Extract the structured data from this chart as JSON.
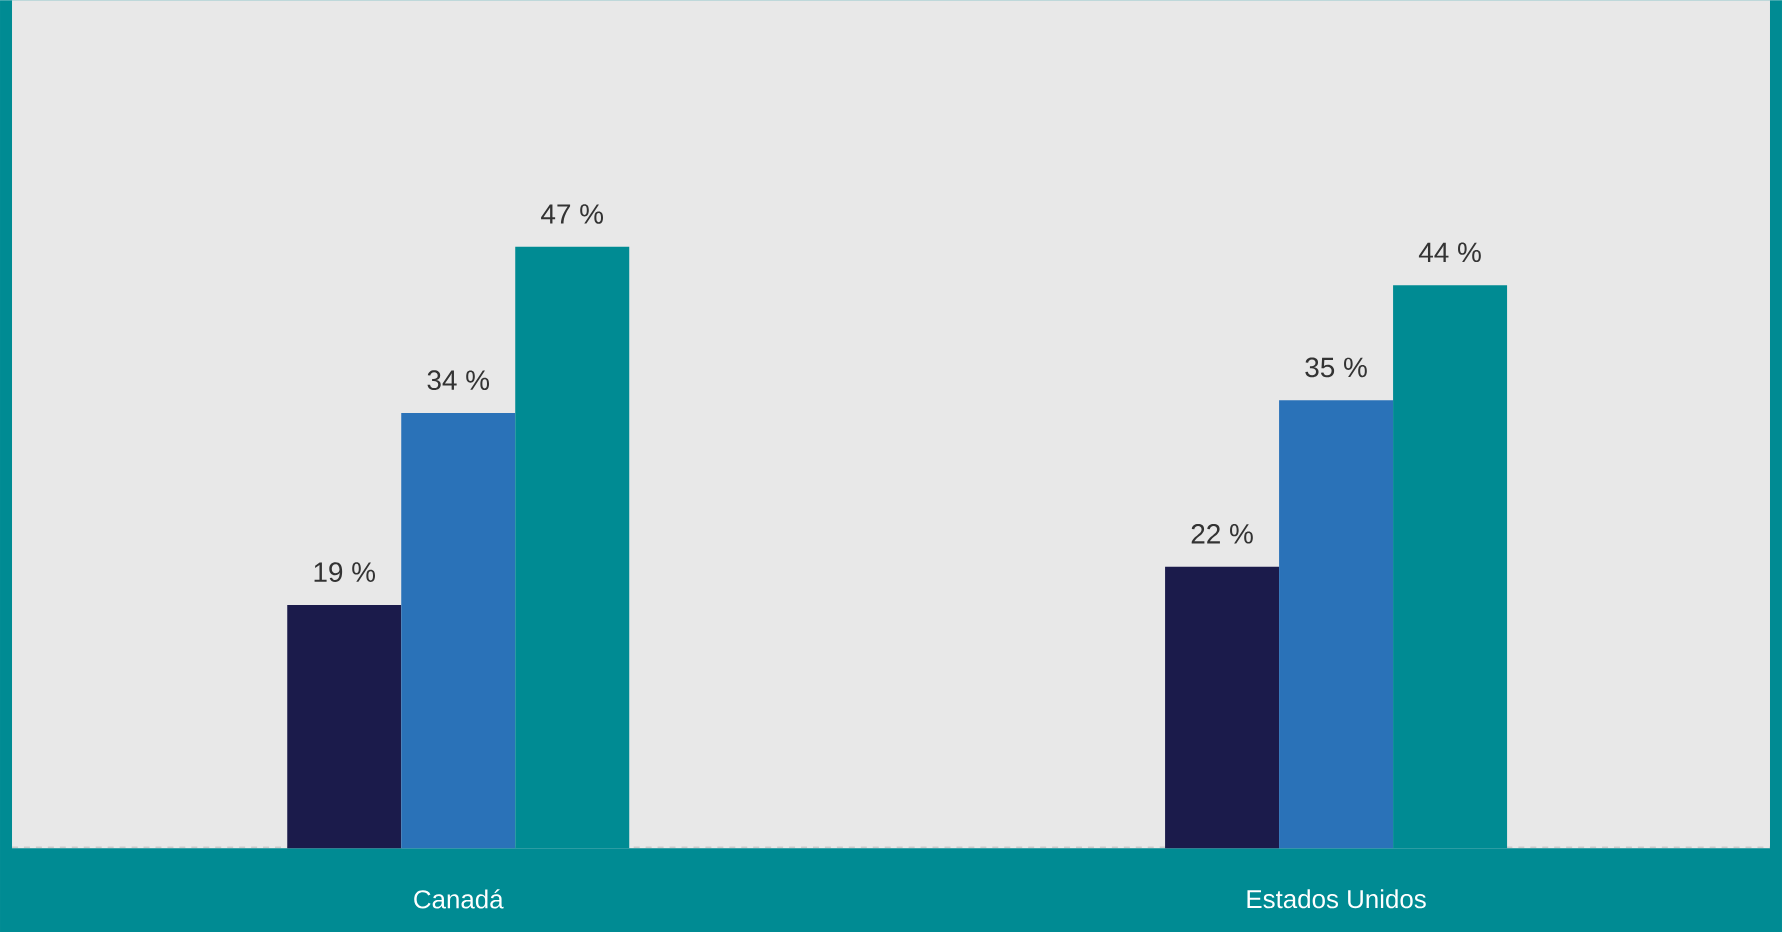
{
  "chart_data": {
    "type": "bar",
    "categories": [
      "Canadá",
      "Estados Unidos"
    ],
    "series": [
      {
        "color": "#1b1b4b",
        "values": [
          19,
          22
        ],
        "value_labels": [
          "19 %",
          "22 %"
        ]
      },
      {
        "color": "#2a72b8",
        "values": [
          34,
          35
        ],
        "value_labels": [
          "34 %",
          "35 %"
        ]
      },
      {
        "color": "#008b93",
        "values": [
          47,
          44
        ],
        "value_labels": [
          "47 %",
          "44 %"
        ]
      }
    ]
  }
}
